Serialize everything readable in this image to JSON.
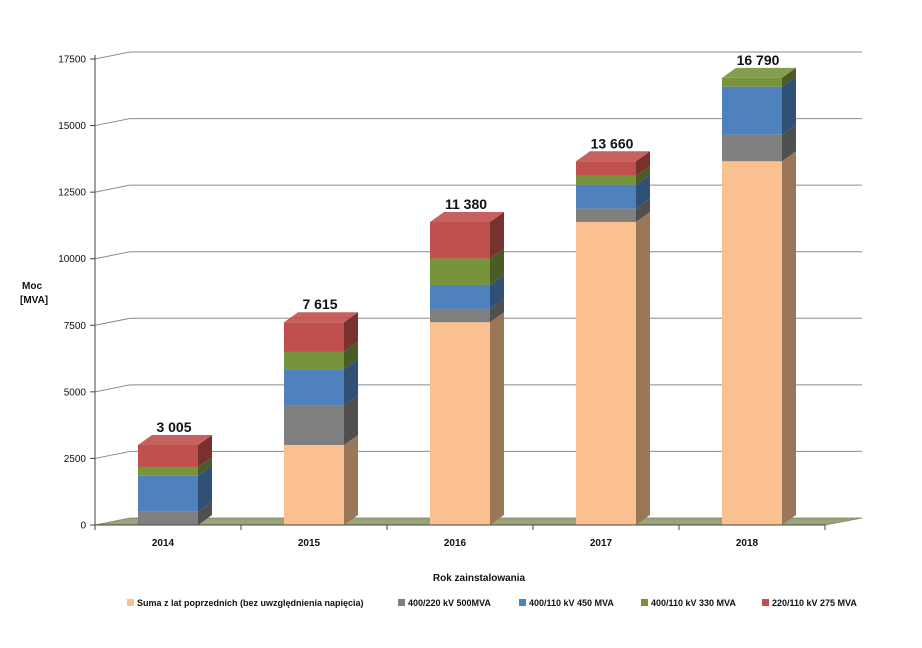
{
  "chart_data": {
    "type": "bar",
    "stacked": true,
    "three_d": true,
    "title": "",
    "xlabel": "Rok zainstalowania",
    "ylabel_lines": [
      "Moc",
      "[MVA]"
    ],
    "ylim": [
      0,
      17500
    ],
    "yticks": [
      0,
      2500,
      5000,
      7500,
      10000,
      12500,
      15000,
      17500
    ],
    "ytick_labels": [
      "0",
      "2500",
      "5000",
      "7500",
      "10000",
      "12500",
      "15000",
      "17500"
    ],
    "categories": [
      "2014",
      "2015",
      "2016",
      "2017",
      "2018"
    ],
    "totals": [
      "3 005",
      "7 615",
      "11 380",
      "13 660",
      "16 790"
    ],
    "legend_position": "bottom",
    "series": [
      {
        "name": "Suma z lat poprzednich (bez uwzględnienia napięcia)",
        "color": "#FAC090",
        "values": [
          0,
          3005,
          7615,
          11380,
          13660
        ]
      },
      {
        "name": "400/220 kV 500MVA",
        "color": "#7F7F7F",
        "values": [
          500,
          1500,
          500,
          500,
          1000
        ]
      },
      {
        "name": "400/110 kV 450 MVA",
        "color": "#4F81BD",
        "values": [
          1350,
          1350,
          900,
          900,
          1800
        ]
      },
      {
        "name": "400/110 kV 330 MVA",
        "color": "#77933C",
        "values": [
          330,
          660,
          990,
          330,
          330
        ]
      },
      {
        "name": "220/110 kV 275 MVA",
        "color": "#C0504D",
        "values": [
          825,
          1100,
          1375,
          550,
          0
        ]
      }
    ]
  }
}
